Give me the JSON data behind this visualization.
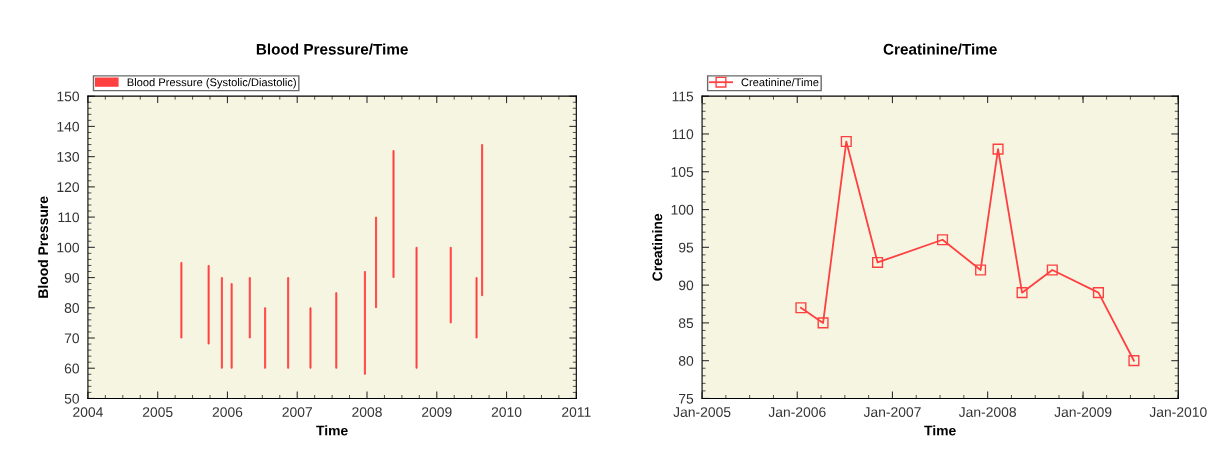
{
  "chart_data": [
    {
      "type": "bar",
      "title": "Blood Pressure/Time",
      "xlabel": "Time",
      "ylabel": "Blood Pressure",
      "x": [
        2005.34,
        2005.73,
        2005.92,
        2006.06,
        2006.32,
        2006.54,
        2006.87,
        2007.19,
        2007.56,
        2007.97,
        2008.13,
        2008.38,
        2008.71,
        2009.2,
        2009.57,
        2009.65
      ],
      "series": [
        {
          "name": "Blood Pressure (Systolic/Diastolic)",
          "color": "#ff4040",
          "base": [
            70,
            68,
            60,
            60,
            70,
            60,
            60,
            60,
            60,
            58,
            80,
            90,
            60,
            75,
            70,
            84
          ],
          "values": [
            25,
            26,
            30,
            28,
            20,
            20,
            30,
            20,
            25,
            34,
            30,
            42,
            40,
            25,
            20,
            50
          ]
        }
      ],
      "xlim": [
        2004,
        2011
      ],
      "xticks": [
        2004,
        2005,
        2006,
        2007,
        2008,
        2009,
        2010,
        2011
      ],
      "ylim": [
        50,
        150
      ],
      "yticks": [
        50,
        60,
        70,
        80,
        90,
        100,
        110,
        120,
        130,
        140,
        150
      ],
      "grid": false,
      "legend": "top left"
    },
    {
      "type": "line",
      "title": "Creatinine/Time",
      "xlabel": "Time",
      "ylabel": "Creatinine",
      "x": [
        "2006-01-15",
        "2006-04-10",
        "2006-07-08",
        "2006-11-05",
        "2007-07-12",
        "2007-12-05",
        "2008-02-10",
        "2008-05-12",
        "2008-09-05",
        "2009-03-01",
        "2009-07-15"
      ],
      "series": [
        {
          "name": "Creatinine/Time",
          "color": "#ff4040",
          "values": [
            87,
            85,
            109,
            93,
            96,
            92,
            108,
            89,
            92,
            89,
            80
          ]
        }
      ],
      "xlim": [
        "2005-01-01",
        "2010-01-01"
      ],
      "xticks": [
        {
          "value": "2005-01-01",
          "label": "Jan-2005"
        },
        {
          "value": "2006-01-01",
          "label": "Jan-2006"
        },
        {
          "value": "2007-01-01",
          "label": "Jan-2007"
        },
        {
          "value": "2008-01-01",
          "label": "Jan-2008"
        },
        {
          "value": "2009-01-01",
          "label": "Jan-2009"
        },
        {
          "value": "2010-01-01",
          "label": "Jan-2010"
        }
      ],
      "ylim": [
        75,
        115
      ],
      "yticks": [
        75,
        80,
        85,
        90,
        95,
        100,
        105,
        110,
        115
      ],
      "grid": false,
      "legend": "top left",
      "marker": "square",
      "line_style": "solid"
    }
  ]
}
